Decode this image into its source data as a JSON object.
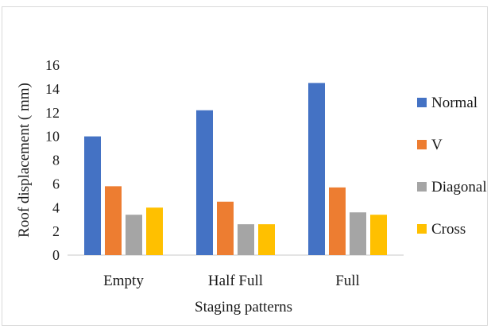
{
  "chart_data": {
    "type": "bar",
    "title": "",
    "xlabel": "Staging patterns",
    "ylabel": "Roof displacement ( mm)",
    "ylim": [
      0,
      16
    ],
    "yticks": [
      "0",
      "2",
      "4",
      "6",
      "8",
      "10",
      "12",
      "14",
      "16"
    ],
    "categories": [
      "Empty",
      "Half Full",
      "Full"
    ],
    "series": [
      {
        "name": "Normal",
        "color": "#4472C4",
        "values": [
          10.0,
          12.2,
          14.5
        ]
      },
      {
        "name": "V",
        "color": "#ED7D31",
        "values": [
          5.8,
          4.5,
          5.7
        ]
      },
      {
        "name": "Diagonal",
        "color": "#A5A5A5",
        "values": [
          3.4,
          2.6,
          3.6
        ]
      },
      {
        "name": "Cross",
        "color": "#FFC000",
        "values": [
          4.0,
          2.6,
          3.4
        ]
      }
    ],
    "grid": false,
    "legend": "right"
  }
}
